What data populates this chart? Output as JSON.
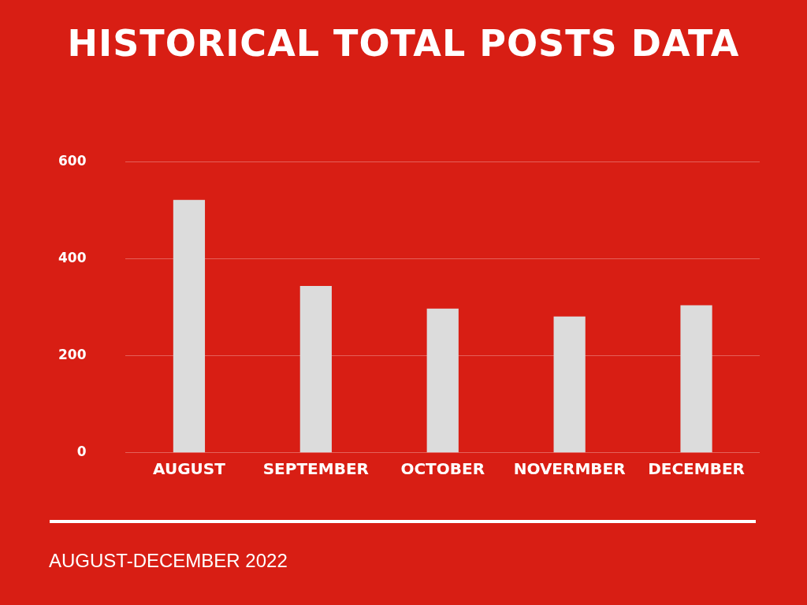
{
  "chart_data": {
    "type": "bar",
    "title": "HISTORICAL TOTAL POSTS DATA",
    "categories": [
      "AUGUST",
      "SEPTEMBER",
      "OCTOBER",
      "NOVERMBER",
      "DECEMBER"
    ],
    "values": [
      521,
      344,
      297,
      281,
      304
    ],
    "color": "#dcdcdc",
    "ylim": [
      0,
      600
    ],
    "yticks": [
      0,
      200,
      400,
      600
    ],
    "grid": "y",
    "annotations": [
      "AUGUST-DECEMBER 2022"
    ]
  }
}
